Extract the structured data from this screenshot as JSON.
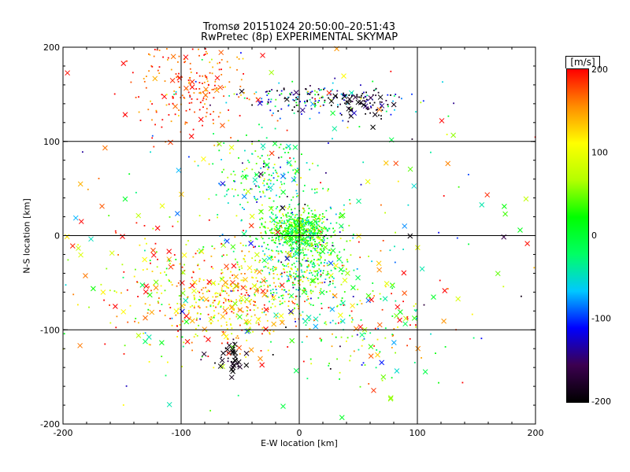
{
  "chart_data": {
    "type": "scatter",
    "title": "Tromsø 20151024 20:50:00–20:51:43",
    "subtitle": "RwPretec (8p) EXPERIMENTAL SKYMAP",
    "xlabel": "E-W location [km]",
    "ylabel": "N-S location [km]",
    "xlim": [
      -200,
      200
    ],
    "ylim": [
      -200,
      200
    ],
    "x_ticks": [
      "-200",
      "-100",
      "0",
      "100",
      "200"
    ],
    "y_ticks": [
      "-200",
      "-100",
      "0",
      "100",
      "200"
    ],
    "grid": true,
    "grid_lines_x": [
      -100,
      0,
      100
    ],
    "grid_lines_y": [
      -100,
      0,
      100
    ],
    "colorbar": {
      "unit_label": "[m/s]",
      "range": [
        -200,
        200
      ],
      "ticks": [
        "200",
        "100",
        "0",
        "-100",
        "-200"
      ],
      "colormap": [
        "#000000",
        "#3c0050",
        "#0000ff",
        "#00c8ff",
        "#00ff64",
        "#00ff00",
        "#b4ff00",
        "#ffff00",
        "#ff8c00",
        "#ff0000"
      ]
    },
    "marker_types": [
      "small dot",
      "x cross"
    ],
    "clusters": [
      {
        "x": 0,
        "y": 5,
        "sx": 14,
        "sy": 10,
        "v": 20,
        "vs": 40,
        "n": 650,
        "cross": 0.02
      },
      {
        "x": 2,
        "y": -30,
        "sx": 22,
        "sy": 25,
        "v": 10,
        "vs": 70,
        "n": 420,
        "cross": 0.04
      },
      {
        "x": -30,
        "y": 60,
        "sx": 22,
        "sy": 22,
        "v": 0,
        "vs": 70,
        "n": 220,
        "cross": 0.05
      },
      {
        "x": 15,
        "y": 145,
        "sx": 35,
        "sy": 8,
        "v": -100,
        "vs": 90,
        "n": 180,
        "cross": 0.05
      },
      {
        "x": 55,
        "y": 140,
        "sx": 12,
        "sy": 8,
        "v": -190,
        "vs": 20,
        "n": 70,
        "cross": 0.25
      },
      {
        "x": -90,
        "y": 160,
        "sx": 25,
        "sy": 28,
        "v": 180,
        "vs": 25,
        "n": 230,
        "cross": 0.1
      },
      {
        "x": -60,
        "y": -70,
        "sx": 30,
        "sy": 25,
        "v": 130,
        "vs": 50,
        "n": 380,
        "cross": 0.12
      },
      {
        "x": -55,
        "y": -130,
        "sx": 6,
        "sy": 8,
        "v": -190,
        "vs": 15,
        "n": 40,
        "cross": 0.6
      },
      {
        "x": 50,
        "y": -90,
        "sx": 35,
        "sy": 35,
        "v": 60,
        "vs": 90,
        "n": 180,
        "cross": 0.25
      },
      {
        "x": -120,
        "y": -60,
        "sx": 40,
        "sy": 40,
        "v": 120,
        "vs": 100,
        "n": 140,
        "cross": 0.3
      },
      {
        "x": 0,
        "y": 0,
        "sx": 120,
        "sy": 120,
        "v": 50,
        "vs": 130,
        "n": 320,
        "cross": 0.35
      }
    ]
  }
}
